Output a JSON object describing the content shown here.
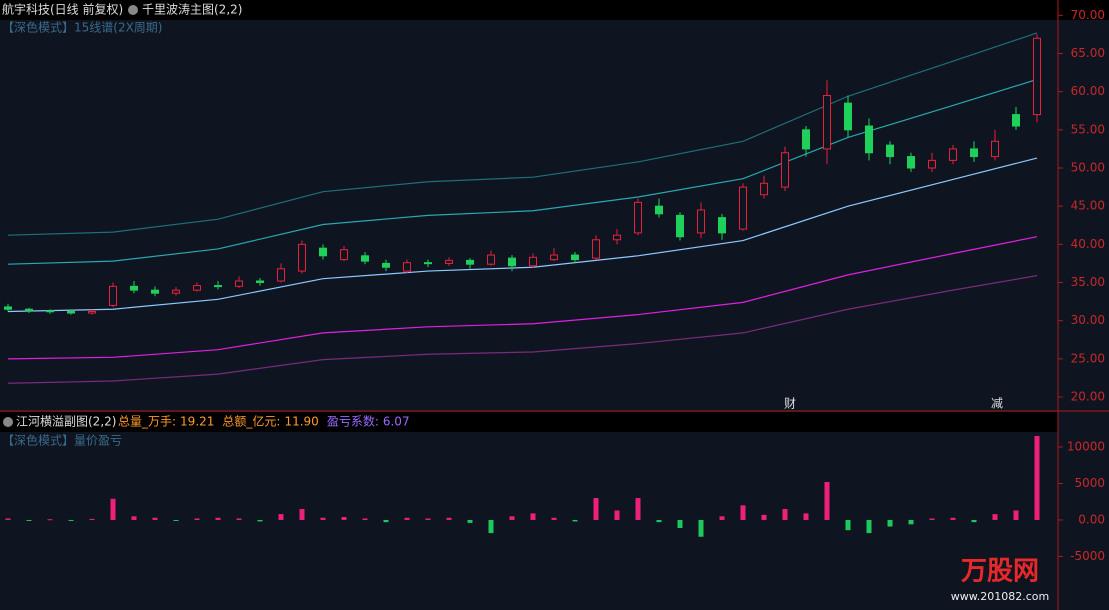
{
  "header": {
    "stock": "航宇科技(日线 前复权)",
    "indicator": "千里波涛主图(2,2)",
    "mode": "【深色模式】15线谱(2X周期)"
  },
  "annotations": [
    "财",
    "减"
  ],
  "logo": {
    "brand": "万股网",
    "url": "www.201082.com"
  },
  "chart_data": [
    {
      "type": "candlestick",
      "up_color": "#e8203c",
      "down_color": "#1fd05a",
      "ylim": [
        18.3,
        70.7
      ],
      "yticks": [
        {
          "value": 20,
          "label": "20.00"
        },
        {
          "value": 25,
          "label": "25.00"
        },
        {
          "value": 30,
          "label": "30.00"
        },
        {
          "value": 35,
          "label": "35.00"
        },
        {
          "value": 40,
          "label": "40.00"
        },
        {
          "value": 45,
          "label": "45.00"
        },
        {
          "value": 50,
          "label": "50.00"
        },
        {
          "value": 55,
          "label": "55.00"
        },
        {
          "value": 60,
          "label": "60.00"
        },
        {
          "value": 65,
          "label": "65.00"
        },
        {
          "value": 70,
          "label": "70.00"
        }
      ],
      "open": [
        31.8,
        31.5,
        31.3,
        31.2,
        31.0,
        32.0,
        34.5,
        34.0,
        33.6,
        34.0,
        34.6,
        34.5,
        35.2,
        35.2,
        36.5,
        39.5,
        38.0,
        38.5,
        37.5,
        36.5,
        37.6,
        37.5,
        37.9,
        37.4,
        38.2,
        37.2,
        38.0,
        38.6,
        38.2,
        40.6,
        41.5,
        45.0,
        43.8,
        41.5,
        43.5,
        42.0,
        46.5,
        47.5,
        55.0,
        52.5,
        58.5,
        55.5,
        53.0,
        51.5,
        50.0,
        51.0,
        52.5,
        51.5,
        57.0,
        57.0
      ],
      "high": [
        32.2,
        31.7,
        31.5,
        31.4,
        31.5,
        35.0,
        35.2,
        34.5,
        34.4,
        35.0,
        35.2,
        35.8,
        35.6,
        37.5,
        40.5,
        40.0,
        39.8,
        39.0,
        38.0,
        38.0,
        38.0,
        38.3,
        38.2,
        39.2,
        38.6,
        38.8,
        39.5,
        39.0,
        41.2,
        42.0,
        46.0,
        46.0,
        44.2,
        45.5,
        44.0,
        48.0,
        49.0,
        52.8,
        55.5,
        61.5,
        59.5,
        56.5,
        53.5,
        52.0,
        52.0,
        53.0,
        53.5,
        55.0,
        58.0,
        67.5
      ],
      "low": [
        31.2,
        31.0,
        30.9,
        30.8,
        30.8,
        31.8,
        33.6,
        33.2,
        33.3,
        33.8,
        34.1,
        34.3,
        34.6,
        35.0,
        36.2,
        38.0,
        37.8,
        37.4,
        36.5,
        36.2,
        37.0,
        37.2,
        36.8,
        37.2,
        36.5,
        36.9,
        37.8,
        37.5,
        38.0,
        40.0,
        41.2,
        43.5,
        40.5,
        40.8,
        40.6,
        41.8,
        46.0,
        47.0,
        51.5,
        50.5,
        54.0,
        51.0,
        50.5,
        49.5,
        49.5,
        50.5,
        50.8,
        51.0,
        55.0,
        56.0
      ],
      "close": [
        31.5,
        31.3,
        31.2,
        31.0,
        31.2,
        34.5,
        34.0,
        33.6,
        34.0,
        34.6,
        34.5,
        35.2,
        35.0,
        36.8,
        40.0,
        38.5,
        39.3,
        37.8,
        37.0,
        37.6,
        37.5,
        37.9,
        37.4,
        38.6,
        37.2,
        38.3,
        38.6,
        38.0,
        40.6,
        41.2,
        45.5,
        44.0,
        41.0,
        44.5,
        41.5,
        47.5,
        48.0,
        52.0,
        52.5,
        59.5,
        55.0,
        52.0,
        51.5,
        50.0,
        51.0,
        52.5,
        51.5,
        53.5,
        55.5,
        67.0
      ],
      "band_x": [
        0,
        5,
        10,
        15,
        20,
        25,
        30,
        35,
        40,
        45,
        49
      ],
      "bands": [
        {
          "color": "#1f6f78",
          "values": [
            41.2,
            41.6,
            43.3,
            46.9,
            48.2,
            48.8,
            50.8,
            53.5,
            59.4,
            64.0,
            67.7
          ]
        },
        {
          "color": "#2aa7b0",
          "values": [
            37.4,
            37.8,
            39.4,
            42.6,
            43.8,
            44.4,
            46.2,
            48.6,
            54.0,
            58.2,
            61.6
          ]
        },
        {
          "color": "#8fc8ff",
          "values": [
            31.2,
            31.5,
            32.8,
            35.5,
            36.5,
            37.0,
            38.5,
            40.5,
            45.0,
            48.5,
            51.3
          ]
        },
        {
          "color": "#e020e0",
          "values": [
            25.0,
            25.2,
            26.2,
            28.4,
            29.2,
            29.6,
            30.8,
            32.4,
            36.0,
            38.8,
            41.0
          ]
        },
        {
          "color": "#7a2a7a",
          "values": [
            21.8,
            22.1,
            23.0,
            24.9,
            25.6,
            25.9,
            27.0,
            28.4,
            31.5,
            34.0,
            35.9
          ]
        }
      ]
    },
    {
      "type": "bar",
      "title": "江河横溢副图(2,2)",
      "subtitle": "【深色模式】量价盈亏",
      "stats": [
        {
          "label": "总量_万手:",
          "value": 19.21,
          "color": "#ff9a2a"
        },
        {
          "label": "总额_亿元:",
          "value": 11.9,
          "value_label": "11.90",
          "color": "#ff9a2a"
        },
        {
          "label": "盈亏系数:",
          "value": 6.07,
          "color": "#9a6aff"
        }
      ],
      "pos_color": "#f0207a",
      "neg_color": "#1fc85a",
      "ylim": [
        -11650,
        12050
      ],
      "yticks": [
        10000,
        5000,
        {
          "value": 0,
          "label": "0.00"
        },
        -5000
      ],
      "values": [
        200,
        -100,
        100,
        -100,
        150,
        2900,
        500,
        300,
        -100,
        200,
        300,
        200,
        -200,
        800,
        1500,
        300,
        400,
        200,
        -300,
        300,
        200,
        300,
        -400,
        -1800,
        500,
        900,
        300,
        -200,
        3000,
        1300,
        3000,
        -300,
        -1100,
        -2300,
        500,
        2000,
        700,
        1500,
        900,
        5200,
        -1400,
        -1800,
        -900,
        -600,
        200,
        300,
        -300,
        800,
        1300,
        11500
      ]
    }
  ]
}
